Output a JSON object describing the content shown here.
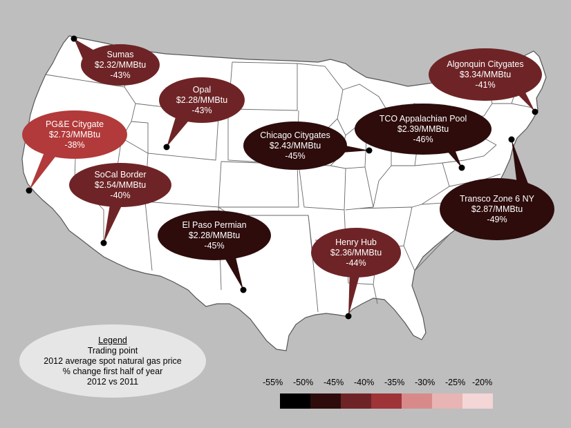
{
  "colors": {
    "background": "#bebebe",
    "land": "#ffffff",
    "border": "#555555"
  },
  "trading_points": [
    {
      "name": "Sumas",
      "price": "$2.32/MMBtu",
      "change": "-43%",
      "change_value": -43
    },
    {
      "name": "Opal",
      "price": "$2.28/MMBtu",
      "change": "-43%",
      "change_value": -43
    },
    {
      "name": "PG&E Citygate",
      "price": "$2.73/MMBtu",
      "change": "-38%",
      "change_value": -38
    },
    {
      "name": "SoCal Border",
      "price": "$2.54/MMBtu",
      "change": "-40%",
      "change_value": -40
    },
    {
      "name": "El Paso Permian",
      "price": "$2.28/MMBtu",
      "change": "-45%",
      "change_value": -45
    },
    {
      "name": "Chicago Citygates",
      "price": "$2.43/MMBtu",
      "change": "-45%",
      "change_value": -45
    },
    {
      "name": "TCO Appalachian Pool",
      "price": "$2.39/MMBtu",
      "change": "-46%",
      "change_value": -46
    },
    {
      "name": "Algonquin Citygates",
      "price": "$3.34/MMBtu",
      "change": "-41%",
      "change_value": -41
    },
    {
      "name": "Transco Zone 6 NY",
      "price": "$2.87/MMBtu",
      "change": "-49%",
      "change_value": -49
    },
    {
      "name": "Henry Hub",
      "price": "$2.36/MMBtu",
      "change": "-44%",
      "change_value": -44
    }
  ],
  "legend": {
    "title": "Legend",
    "line1": "Trading point",
    "line2": "2012 average spot natural gas price",
    "line3": "% change first half of year",
    "line4": "2012 vs 2011"
  },
  "color_scale": {
    "labels": [
      "-55%",
      "-50%",
      "-45%",
      "-40%",
      "-35%",
      "-30%",
      "-25%",
      "-20%"
    ],
    "colors": [
      "#000000",
      "#2e0c0c",
      "#6e2426",
      "#9e3338",
      "#d88a8a",
      "#e8b4b4",
      "#f4d6d6"
    ]
  }
}
